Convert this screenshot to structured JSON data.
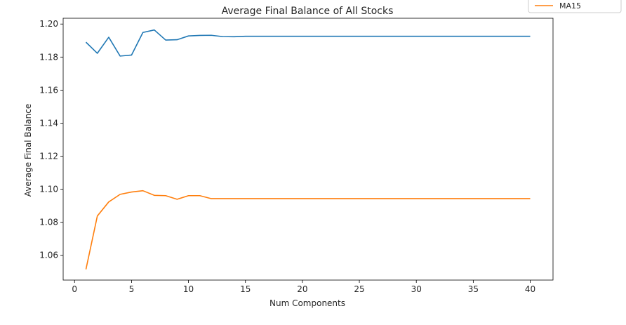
{
  "chart_data": {
    "type": "line",
    "title": "Average Final Balance of All Stocks",
    "xlabel": "Num Components",
    "ylabel": "Average Final Balance",
    "xlim": [
      -1,
      42
    ],
    "ylim": [
      1.045,
      1.2035
    ],
    "xticks": [
      0,
      5,
      10,
      15,
      20,
      25,
      30,
      35,
      40
    ],
    "yticks": [
      1.06,
      1.08,
      1.1,
      1.12,
      1.14,
      1.16,
      1.18,
      1.2
    ],
    "ytick_labels": [
      "1.06",
      "1.08",
      "1.10",
      "1.12",
      "1.14",
      "1.16",
      "1.18",
      "1.20"
    ],
    "grid": false,
    "legend": {
      "placement": "top-right",
      "visible_entries": [
        "MA15"
      ]
    },
    "series": [
      {
        "color": "#1f77b4",
        "x": [
          1,
          2,
          3,
          4,
          5,
          6,
          7,
          8,
          9,
          10,
          11,
          12,
          13,
          14,
          15,
          16,
          17,
          18,
          19,
          20,
          21,
          22,
          23,
          24,
          25,
          26,
          27,
          28,
          29,
          30,
          31,
          32,
          33,
          34,
          35,
          36,
          37,
          38,
          39,
          40
        ],
        "values": [
          1.189,
          1.1823,
          1.192,
          1.1806,
          1.1812,
          1.1949,
          1.1964,
          1.1903,
          1.1905,
          1.1928,
          1.1931,
          1.1932,
          1.1924,
          1.1923,
          1.1926,
          1.1926,
          1.1926,
          1.1926,
          1.1926,
          1.1926,
          1.1926,
          1.1926,
          1.1926,
          1.1926,
          1.1926,
          1.1926,
          1.1926,
          1.1926,
          1.1926,
          1.1926,
          1.1926,
          1.1926,
          1.1926,
          1.1926,
          1.1926,
          1.1926,
          1.1926,
          1.1926,
          1.1926,
          1.1926
        ]
      },
      {
        "name": "MA15",
        "color": "#ff7f0e",
        "x": [
          1,
          2,
          3,
          4,
          5,
          6,
          7,
          8,
          9,
          10,
          11,
          12,
          13,
          14,
          15,
          16,
          17,
          18,
          19,
          20,
          21,
          22,
          23,
          24,
          25,
          26,
          27,
          28,
          29,
          30,
          31,
          32,
          33,
          34,
          35,
          36,
          37,
          38,
          39,
          40
        ],
        "values": [
          1.0515,
          1.0838,
          1.0923,
          1.0969,
          1.0983,
          1.0991,
          1.0963,
          1.0961,
          1.0939,
          1.0961,
          1.0961,
          1.0943,
          1.0943,
          1.0943,
          1.0943,
          1.0943,
          1.0943,
          1.0943,
          1.0943,
          1.0943,
          1.0943,
          1.0943,
          1.0943,
          1.0943,
          1.0943,
          1.0943,
          1.0943,
          1.0943,
          1.0943,
          1.0943,
          1.0943,
          1.0943,
          1.0943,
          1.0943,
          1.0943,
          1.0943,
          1.0943,
          1.0943,
          1.0943,
          1.0943
        ]
      }
    ]
  }
}
